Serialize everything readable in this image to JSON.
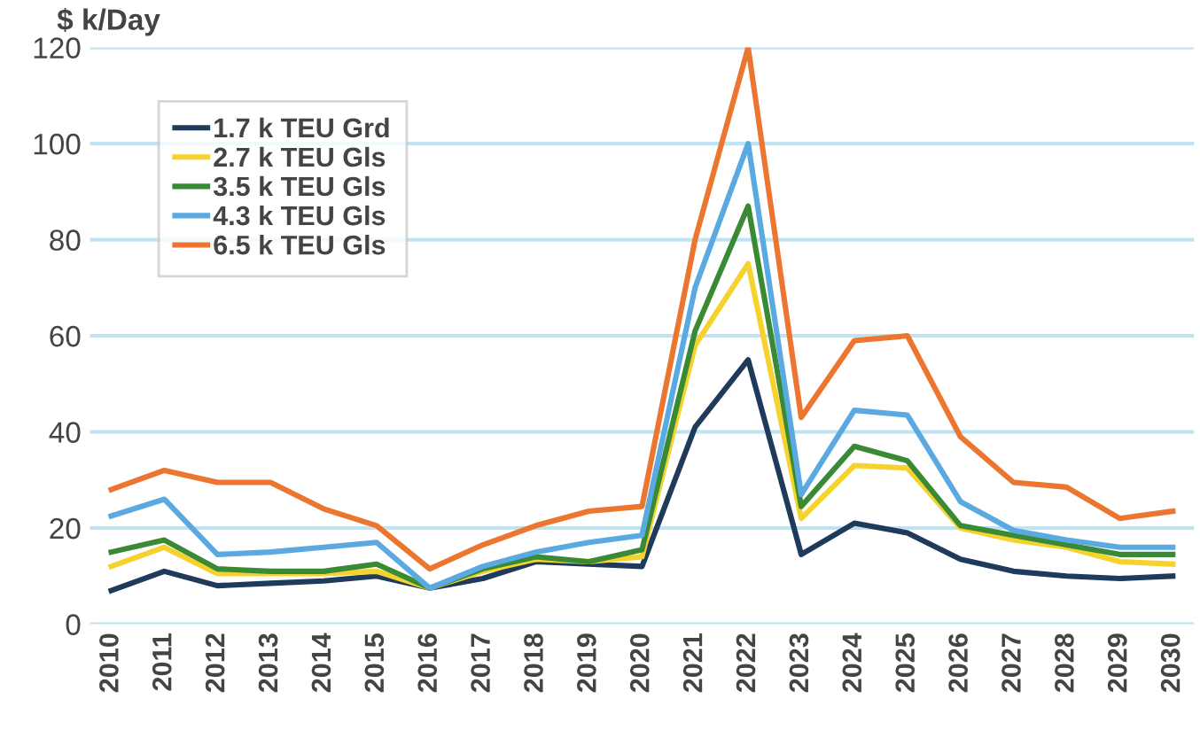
{
  "chart_data": {
    "type": "line",
    "ylabel": "$ k/Day",
    "categories": [
      "2010",
      "2011",
      "2012",
      "2013",
      "2014",
      "2015",
      "2016",
      "2017",
      "2018",
      "2019",
      "2020",
      "2021",
      "2022",
      "2023",
      "2024",
      "2025",
      "2026",
      "2027",
      "2028",
      "2029",
      "2030"
    ],
    "series": [
      {
        "name": "1.7 k TEU Grd",
        "color": "#1f3a5a",
        "values": [
          7,
          11,
          8,
          8.5,
          9,
          10,
          7.5,
          9.5,
          13,
          12.5,
          12,
          41,
          55,
          14.5,
          21,
          19,
          13.5,
          11,
          10,
          9.5,
          10
        ]
      },
      {
        "name": "2.7 k TEU Gls",
        "color": "#f5d22e",
        "values": [
          12,
          16,
          10.5,
          10.5,
          10.5,
          11,
          7.5,
          11,
          13.5,
          13,
          14,
          58,
          75,
          22,
          33,
          32.5,
          20,
          17.5,
          16,
          13,
          12.5
        ]
      },
      {
        "name": "3.5 k TEU Gls",
        "color": "#3a8a35",
        "values": [
          15,
          17.5,
          11.5,
          11,
          11,
          12.5,
          7.5,
          11.5,
          14,
          13,
          15.5,
          61,
          87,
          24.5,
          37,
          34,
          20.5,
          18.5,
          16.5,
          14.5,
          14.5
        ]
      },
      {
        "name": "4.3 k TEU Gls",
        "color": "#5aa9e0",
        "values": [
          22.5,
          26,
          14.5,
          15,
          16,
          17,
          7.5,
          12,
          15,
          17,
          18.5,
          70,
          100,
          27,
          44.5,
          43.5,
          25.5,
          19.5,
          17.5,
          16,
          16
        ]
      },
      {
        "name": "6.5 k TEU Gls",
        "color": "#ec7530",
        "values": [
          28,
          32,
          29.5,
          29.5,
          24,
          20.5,
          11.5,
          16.5,
          20.5,
          23.5,
          24.5,
          80,
          120,
          43,
          59,
          60,
          39,
          29.5,
          28.5,
          22,
          23.5
        ]
      }
    ],
    "ylim": [
      0,
      120
    ],
    "yticks": [
      0,
      20,
      40,
      60,
      80,
      100,
      120
    ],
    "grid": "y",
    "legend": "top left"
  }
}
